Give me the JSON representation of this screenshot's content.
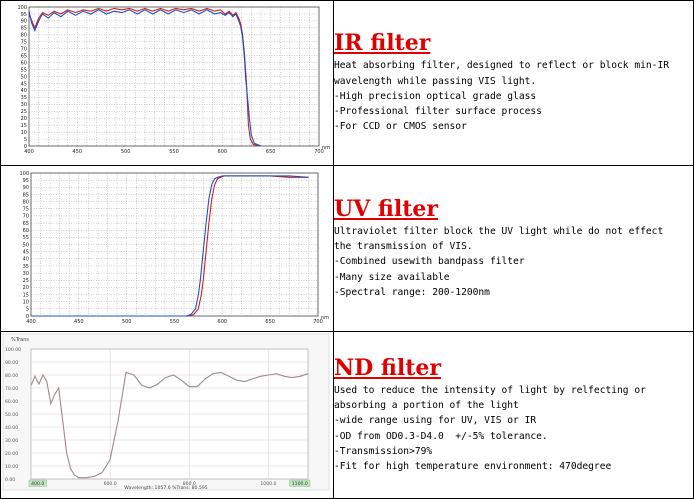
{
  "filters": [
    {
      "title": "IR filter",
      "lines": [
        "Heat absorbing filter, designed to reflect or block min-IR",
        "wavelength while passing VIS light.",
        "-High precision optical grade glass",
        "-Professional filter surface process",
        "-For CCD or CMOS sensor"
      ]
    },
    {
      "title": "UV filter",
      "lines": [
        "Ultraviolet filter block the UV light while do not effect",
        "the transmission of VIS.",
        "-Combined usewith bandpass filter",
        "-Many size available",
        "-Spectral range: 200-1200nm"
      ]
    },
    {
      "title": "ND filter",
      "lines": [
        "Used to reduce the intensity of light by relfecting or",
        "absorbing a portion of the light",
        "-wide range using for UV, VIS or IR",
        "-OD from OD0.3-D4.0  +/-5% tolerance.",
        "-Transmission>79%",
        "-Fit for high temperature environment: 470degree"
      ]
    }
  ],
  "chart_data": [
    {
      "type": "line",
      "xlabel": "nm",
      "ylabel": "",
      "xlim": [
        400,
        700
      ],
      "ylim": [
        0,
        100
      ],
      "xticks": [
        400,
        450,
        500,
        550,
        600,
        650,
        700
      ],
      "yticks": [
        0,
        5,
        10,
        15,
        20,
        25,
        30,
        35,
        40,
        45,
        50,
        55,
        60,
        65,
        70,
        75,
        80,
        85,
        90,
        95,
        100
      ],
      "grid": true,
      "series": [
        {
          "color": "#cc2020",
          "x": [
            400,
            403,
            406,
            410,
            414,
            420,
            426,
            433,
            440,
            448,
            456,
            464,
            472,
            480,
            488,
            496,
            504,
            512,
            520,
            528,
            536,
            544,
            552,
            560,
            568,
            576,
            584,
            592,
            598,
            603,
            607,
            611,
            614,
            617,
            619,
            621,
            623,
            625,
            626,
            627,
            629,
            632,
            640
          ],
          "y": [
            95,
            90,
            85,
            92,
            96,
            94,
            97,
            95,
            98,
            96,
            98,
            97,
            99,
            97,
            99,
            98,
            99,
            97,
            99,
            97,
            99,
            97,
            99,
            98,
            99,
            97,
            99,
            97,
            98,
            95,
            97,
            94,
            96,
            92,
            88,
            80,
            65,
            45,
            30,
            15,
            5,
            1,
            0
          ]
        },
        {
          "color": "#2050c0",
          "x": [
            400,
            403,
            406,
            410,
            414,
            420,
            426,
            433,
            440,
            448,
            456,
            464,
            472,
            480,
            488,
            496,
            504,
            512,
            520,
            528,
            536,
            544,
            552,
            560,
            568,
            576,
            584,
            592,
            598,
            603,
            607,
            611,
            614,
            617,
            619,
            621,
            623,
            624,
            626,
            628,
            630,
            633,
            640
          ],
          "y": [
            97,
            88,
            83,
            90,
            95,
            92,
            96,
            93,
            97,
            94,
            97,
            95,
            98,
            95,
            97,
            96,
            98,
            95,
            98,
            95,
            98,
            95,
            98,
            96,
            98,
            95,
            98,
            95,
            96,
            94,
            96,
            93,
            95,
            90,
            86,
            78,
            62,
            50,
            35,
            20,
            8,
            2,
            0
          ]
        }
      ]
    },
    {
      "type": "line",
      "xlabel": "nm",
      "ylabel": "",
      "xlim": [
        400,
        700
      ],
      "ylim": [
        0,
        100
      ],
      "xticks": [
        400,
        450,
        500,
        550,
        600,
        650,
        700
      ],
      "yticks": [
        0,
        5,
        10,
        15,
        20,
        25,
        30,
        35,
        40,
        45,
        50,
        55,
        60,
        65,
        70,
        75,
        80,
        85,
        90,
        95,
        100
      ],
      "grid": true,
      "series": [
        {
          "color": "#cc2020",
          "x": [
            400,
            540,
            565,
            570,
            575,
            578,
            580,
            583,
            586,
            589,
            592,
            595,
            598,
            602,
            610,
            630,
            650,
            670,
            690
          ],
          "y": [
            0,
            0,
            0,
            1,
            5,
            15,
            25,
            45,
            65,
            82,
            92,
            96,
            97,
            98,
            98,
            98,
            98,
            97,
            97
          ]
        },
        {
          "color": "#2050c0",
          "x": [
            400,
            540,
            562,
            567,
            572,
            575,
            577,
            580,
            583,
            586,
            589,
            592,
            595,
            600,
            610,
            630,
            650,
            670,
            690
          ],
          "y": [
            0,
            0,
            0,
            1,
            5,
            15,
            25,
            45,
            65,
            82,
            92,
            96,
            97,
            98,
            98,
            98,
            98,
            98,
            97
          ]
        }
      ]
    },
    {
      "type": "line",
      "title": "%Trans",
      "xlabel": "",
      "ylabel": "",
      "xlim": [
        400,
        1100
      ],
      "ylim": [
        0,
        100
      ],
      "xticks": [
        400,
        600,
        800,
        1000,
        1100
      ],
      "xtick_labels": [
        "400.0",
        "600.0",
        "800.0",
        "1000.0",
        "1100.0"
      ],
      "yticks": [
        0,
        10,
        20,
        30,
        40,
        50,
        60,
        70,
        80,
        90,
        100
      ],
      "ytick_labels": [
        "0.00",
        "10.00",
        "20.00",
        "30.00",
        "40.00",
        "50.00",
        "60.00",
        "70.00",
        "80.00",
        "90.00",
        "100.00"
      ],
      "grid": true,
      "readout": "Wavelength: 1057.6       %Trans: 80.595",
      "series": [
        {
          "color": "#a08a8a",
          "x": [
            400,
            410,
            420,
            430,
            440,
            450,
            460,
            470,
            480,
            490,
            500,
            510,
            520,
            530,
            540,
            560,
            580,
            600,
            620,
            640,
            660,
            680,
            700,
            720,
            740,
            760,
            780,
            800,
            820,
            840,
            860,
            880,
            900,
            920,
            940,
            960,
            980,
            1000,
            1020,
            1040,
            1060,
            1080,
            1100
          ],
          "y": [
            72,
            79,
            73,
            80,
            75,
            58,
            65,
            70,
            45,
            20,
            8,
            3,
            1,
            1,
            1,
            2,
            5,
            15,
            45,
            82,
            80,
            72,
            70,
            73,
            78,
            80,
            76,
            71,
            71,
            77,
            81,
            82,
            79,
            76,
            75,
            77,
            79,
            80,
            81,
            79,
            78,
            79,
            81
          ]
        }
      ]
    }
  ]
}
